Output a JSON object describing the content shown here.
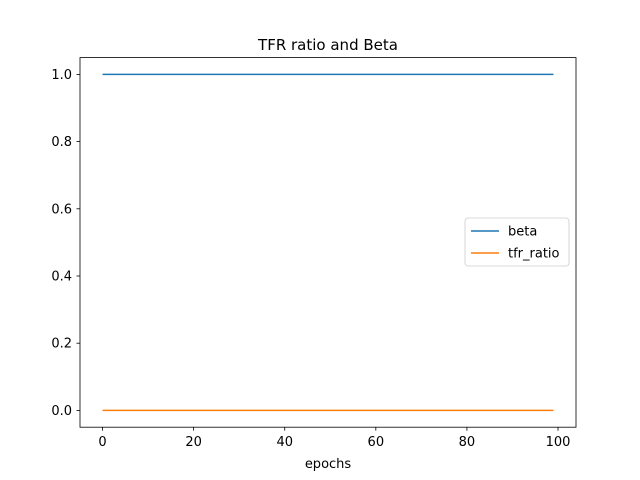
{
  "chart_data": {
    "type": "line",
    "title": "TFR ratio and Beta",
    "xlabel": "epochs",
    "ylabel": "",
    "xlim": [
      -4.95,
      103.95
    ],
    "ylim": [
      -0.05,
      1.05
    ],
    "xticks": [
      0,
      20,
      40,
      60,
      80,
      100
    ],
    "yticks": [
      0.0,
      0.2,
      0.4,
      0.6,
      0.8,
      1.0
    ],
    "xtick_labels": [
      "0",
      "20",
      "40",
      "60",
      "80",
      "100"
    ],
    "ytick_labels": [
      "0.0",
      "0.2",
      "0.4",
      "0.6",
      "0.8",
      "1.0"
    ],
    "grid": false,
    "legend_position": "center-right",
    "series": [
      {
        "name": "beta",
        "color": "#1f77b4",
        "x": [
          0,
          99
        ],
        "y": [
          1.0,
          1.0
        ]
      },
      {
        "name": "tfr_ratio",
        "color": "#ff7f0e",
        "x": [
          0,
          99
        ],
        "y": [
          0.0,
          0.0
        ]
      }
    ]
  }
}
